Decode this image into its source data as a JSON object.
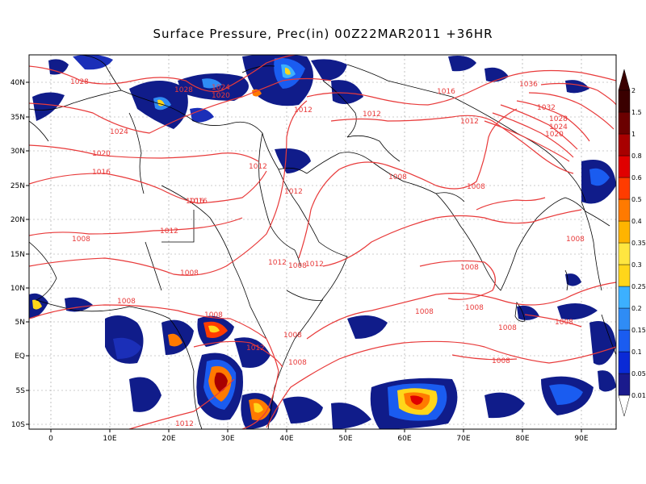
{
  "title": "Surface Pressure,  Prec(in) 00Z22MAR2011 +36HR",
  "axes": {
    "x_ticks": [
      "0",
      "10E",
      "20E",
      "30E",
      "40E",
      "50E",
      "60E",
      "70E",
      "80E",
      "90E"
    ],
    "y_ticks": [
      "40N",
      "35N",
      "30N",
      "25N",
      "20N",
      "15N",
      "10N",
      "5N",
      "EQ",
      "5S",
      "10S"
    ]
  },
  "colorbar": {
    "labels": [
      "0.01",
      "0.05",
      "0.1",
      "0.15",
      "0.2",
      "0.25",
      "0.3",
      "0.35",
      "0.4",
      "0.5",
      "0.6",
      "0.8",
      "1",
      "1.5",
      "2"
    ],
    "colors": [
      "#1a1a8c",
      "#0a2ad6",
      "#1a5cf0",
      "#2f8cf5",
      "#3cb0ff",
      "#ffd61a",
      "#ffe640",
      "#ffb400",
      "#ff7a00",
      "#ff3c00",
      "#e00000",
      "#a80000",
      "#6b0000",
      "#3a0000"
    ]
  },
  "isobar_labels": [
    "1028",
    "1028",
    "1024",
    "1020",
    "1016",
    "1012",
    "1012",
    "1016",
    "1012",
    "1036",
    "1032",
    "1028",
    "1024",
    "1020",
    "1024",
    "1020",
    "1016",
    "1012",
    "1016",
    "1012",
    "1008",
    "1008",
    "1008",
    "1008",
    "1012",
    "1012",
    "1008",
    "1008",
    "1008",
    "1008",
    "1008",
    "1008",
    "1008",
    "1008",
    "1012",
    "1008",
    "1008",
    "1012"
  ]
}
